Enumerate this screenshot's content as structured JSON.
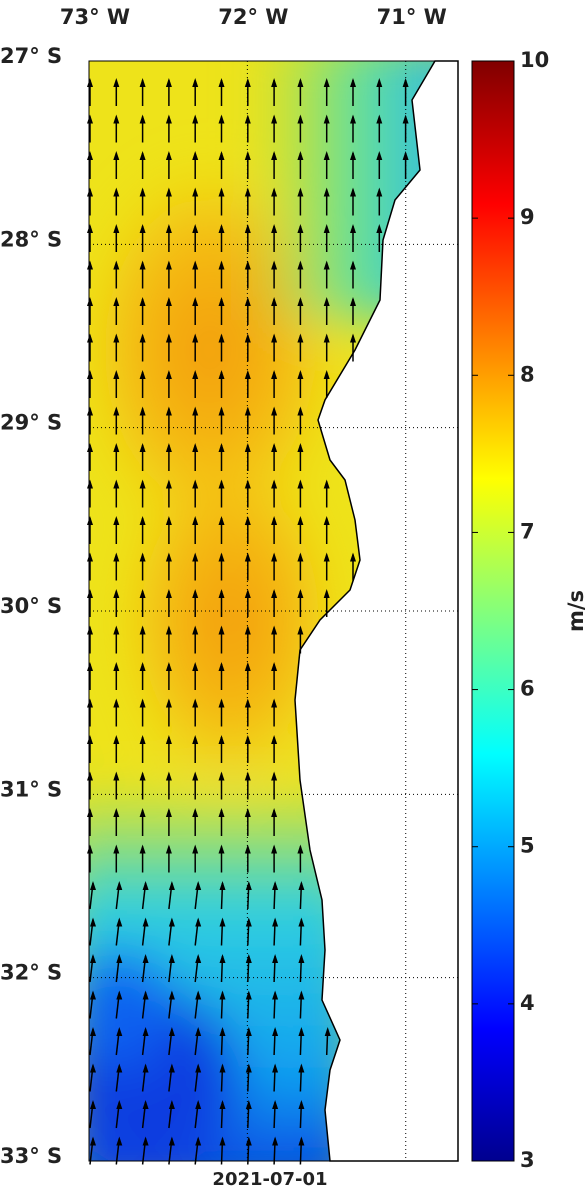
{
  "map": {
    "xlim": [
      -73,
      -70.67
    ],
    "ylim": [
      -33,
      -27
    ],
    "xticks": [
      {
        "value": -73,
        "label": "73° W"
      },
      {
        "value": -72,
        "label": "72° W"
      },
      {
        "value": -71,
        "label": "71° W"
      }
    ],
    "yticks": [
      {
        "value": -27,
        "label": "27° S"
      },
      {
        "value": -28,
        "label": "28° S"
      },
      {
        "value": -29,
        "label": "29° S"
      },
      {
        "value": -30,
        "label": "30° S"
      },
      {
        "value": -31,
        "label": "31° S"
      },
      {
        "value": -32,
        "label": "32° S"
      },
      {
        "value": -33,
        "label": "33° S"
      }
    ],
    "date": "2021-07-01"
  },
  "colorbar": {
    "label": "m/s",
    "range": [
      3,
      10
    ],
    "ticks": [
      3,
      4,
      5,
      6,
      7,
      8,
      9,
      10
    ]
  }
}
